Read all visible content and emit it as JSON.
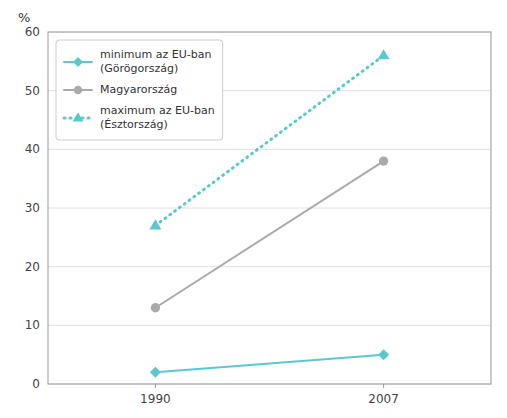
{
  "chart_data": {
    "type": "line",
    "ylabel": "%",
    "x": [
      1990,
      2007
    ],
    "xlim": [
      1982,
      2015
    ],
    "xticks": [
      1990,
      2007
    ],
    "ylim": [
      0,
      60
    ],
    "yticks": [
      0,
      10,
      20,
      30,
      40,
      50,
      60
    ],
    "grid": true,
    "legend": "upper left",
    "series": [
      {
        "name": "minimum az EU-ban\n(Görögország)",
        "color": "#5bc8d0",
        "marker": "diamond",
        "line_style": "solid",
        "values": [
          2,
          5
        ]
      },
      {
        "name": "Magyarország",
        "color": "#aaaaaa",
        "marker": "circle",
        "line_style": "solid",
        "values": [
          13,
          38
        ]
      },
      {
        "name": "maximum az EU-ban\n(Észtország)",
        "color": "#5bc8d0",
        "marker": "triangle",
        "line_style": "dotted",
        "values": [
          27,
          56
        ]
      }
    ]
  }
}
